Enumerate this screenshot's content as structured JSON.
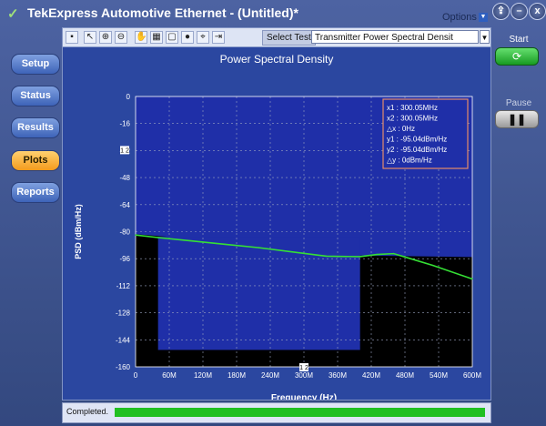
{
  "window": {
    "title": "TekExpress Automotive Ethernet  -  (Untitled)*",
    "options_label": "Options",
    "logo_icon": "tek-check-logo-icon"
  },
  "window_controls": [
    {
      "name": "upload-icon",
      "glyph": "⇪"
    },
    {
      "name": "minimize-icon",
      "glyph": "–"
    },
    {
      "name": "close-icon",
      "glyph": "x"
    }
  ],
  "sidebar": {
    "items": [
      {
        "label": "Setup",
        "active": false
      },
      {
        "label": "Status",
        "active": false
      },
      {
        "label": "Results",
        "active": false
      },
      {
        "label": "Plots",
        "active": true
      },
      {
        "label": "Reports",
        "active": false
      }
    ]
  },
  "toolbar": {
    "icons": [
      "save-icon",
      "pointer-icon",
      "zoom-in-icon",
      "zoom-out-icon",
      "pan-hand-icon",
      "grid-icon",
      "fit-icon",
      "color-wheel-icon",
      "cursor-icon",
      "export-icon"
    ],
    "select_label": "Select Test",
    "select_value": "Transmitter Power Spectral Densit"
  },
  "controls": {
    "start_label": "Start",
    "pause_label": "Pause"
  },
  "status": {
    "text": "Completed.",
    "progress": 1.0,
    "progress_color": "#21c021"
  },
  "chart_data": {
    "type": "line",
    "title": "Power Spectral Density",
    "xlabel": "Frequency (Hz)",
    "ylabel": "PSD (dBm/Hz)",
    "xlim": [
      0,
      600
    ],
    "ylim": [
      -160,
      0
    ],
    "x_ticks": [
      "0",
      "60M",
      "120M",
      "180M",
      "240M",
      "300M",
      "360M",
      "420M",
      "480M",
      "540M",
      "600M"
    ],
    "y_ticks": [
      "0",
      "-16",
      "-32",
      "-48",
      "-64",
      "-80",
      "-96",
      "-112",
      "-128",
      "-144",
      "-160"
    ],
    "grid": true,
    "colors": {
      "background": "#000000",
      "mask_region": "#1f2fa8",
      "trace": "#35e035"
    },
    "mask": {
      "upper": [
        [
          0,
          -81.5
        ],
        [
          300,
          -89.5
        ],
        [
          370,
          -94
        ],
        [
          600,
          -95
        ]
      ],
      "lower": [
        [
          40,
          -150
        ],
        [
          400,
          -150
        ]
      ],
      "lower_box_top": -83
    },
    "series": [
      {
        "values": [
          [
            0,
            -82
          ],
          [
            40,
            -83.5
          ],
          [
            100,
            -85.5
          ],
          [
            160,
            -87.5
          ],
          [
            220,
            -89.5
          ],
          [
            280,
            -92
          ],
          [
            340,
            -94.5
          ],
          [
            400,
            -94.8
          ],
          [
            430,
            -93.5
          ],
          [
            460,
            -93
          ],
          [
            490,
            -96
          ],
          [
            530,
            -100
          ],
          [
            600,
            -108
          ]
        ]
      }
    ],
    "cursor_readout": [
      "x1 : 300.05MHz",
      "x2 : 300.05MHz",
      "△x : 0Hz",
      "y1 : -95.04dBm/Hz",
      "y2 : -95.04dBm/Hz",
      "△y : 0dBm/Hz"
    ],
    "cursor_markers": {
      "x_marker": "1 2",
      "y_marker": "1 2",
      "cursor_x": 300
    }
  }
}
